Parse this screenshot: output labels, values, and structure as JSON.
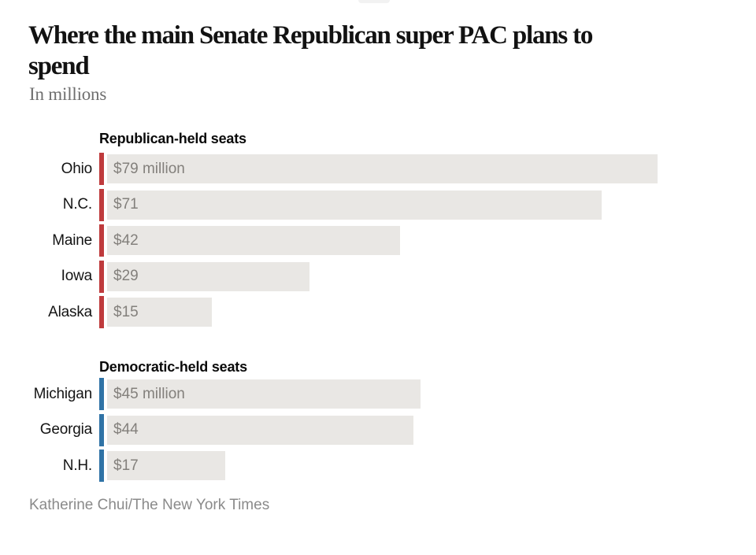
{
  "header": {
    "title_lines": [
      "Where the main Senate Republican super PAC plans to",
      "spend"
    ],
    "subtitle": "In millions"
  },
  "footer": {
    "credit": "Katherine Chui/The New York Times"
  },
  "colors": {
    "republican_accent": "#bf3b3d",
    "democratic_accent": "#3073a6",
    "bar_fill": "#e9e7e4",
    "value_text": "#83807c",
    "title_text": "#121212",
    "muted_text": "#8a8a8a"
  },
  "chart_data": {
    "type": "bar",
    "orientation": "horizontal",
    "title": "Where the main Senate Republican super PAC plans to spend",
    "subtitle": "In millions",
    "unit": "millions of dollars",
    "xlim": [
      0,
      79
    ],
    "grid": false,
    "legend_position": "none",
    "series": [
      {
        "name": "Republican-held seats",
        "accent_color": "#bf3b3d",
        "points": [
          {
            "label": "Ohio",
            "value": 79,
            "display": "$79 million"
          },
          {
            "label": "N.C.",
            "value": 71,
            "display": "$71"
          },
          {
            "label": "Maine",
            "value": 42,
            "display": "$42"
          },
          {
            "label": "Iowa",
            "value": 29,
            "display": "$29"
          },
          {
            "label": "Alaska",
            "value": 15,
            "display": "$15"
          }
        ]
      },
      {
        "name": "Democratic-held seats",
        "accent_color": "#3073a6",
        "points": [
          {
            "label": "Michigan",
            "value": 45,
            "display": "$45 million"
          },
          {
            "label": "Georgia",
            "value": 44,
            "display": "$44"
          },
          {
            "label": "N.H.",
            "value": 17,
            "display": "$17"
          }
        ]
      }
    ],
    "credit": "Katherine Chui/The New York Times"
  }
}
